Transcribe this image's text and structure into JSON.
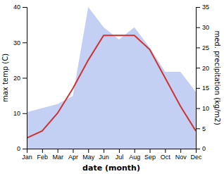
{
  "chart_data": {
    "type": "line",
    "xlabel": "date (month)",
    "ylabel": "max temp (C)",
    "y2label": "med. precipitation (kg/m2)",
    "categories": [
      "Jan",
      "Feb",
      "Mar",
      "Apr",
      "May",
      "Jun",
      "Jul",
      "Aug",
      "Sep",
      "Oct",
      "Nov",
      "Dec"
    ],
    "series": [
      {
        "type": "area",
        "axis": "y2",
        "color": "#aabbee",
        "values": [
          9,
          10,
          11,
          13,
          35,
          30,
          27,
          30,
          25,
          19,
          19,
          14
        ]
      },
      {
        "type": "line",
        "color": "#cc3333",
        "values": [
          3,
          5,
          10,
          17,
          25,
          32,
          32,
          32,
          28,
          20,
          12,
          5
        ]
      }
    ],
    "ylim": [
      0,
      40
    ],
    "yticks": [
      0,
      10,
      20,
      30,
      40
    ],
    "y2lim": [
      0,
      35
    ],
    "y2ticks": [
      0,
      5,
      10,
      15,
      20,
      25,
      30,
      35
    ],
    "grid": false
  }
}
